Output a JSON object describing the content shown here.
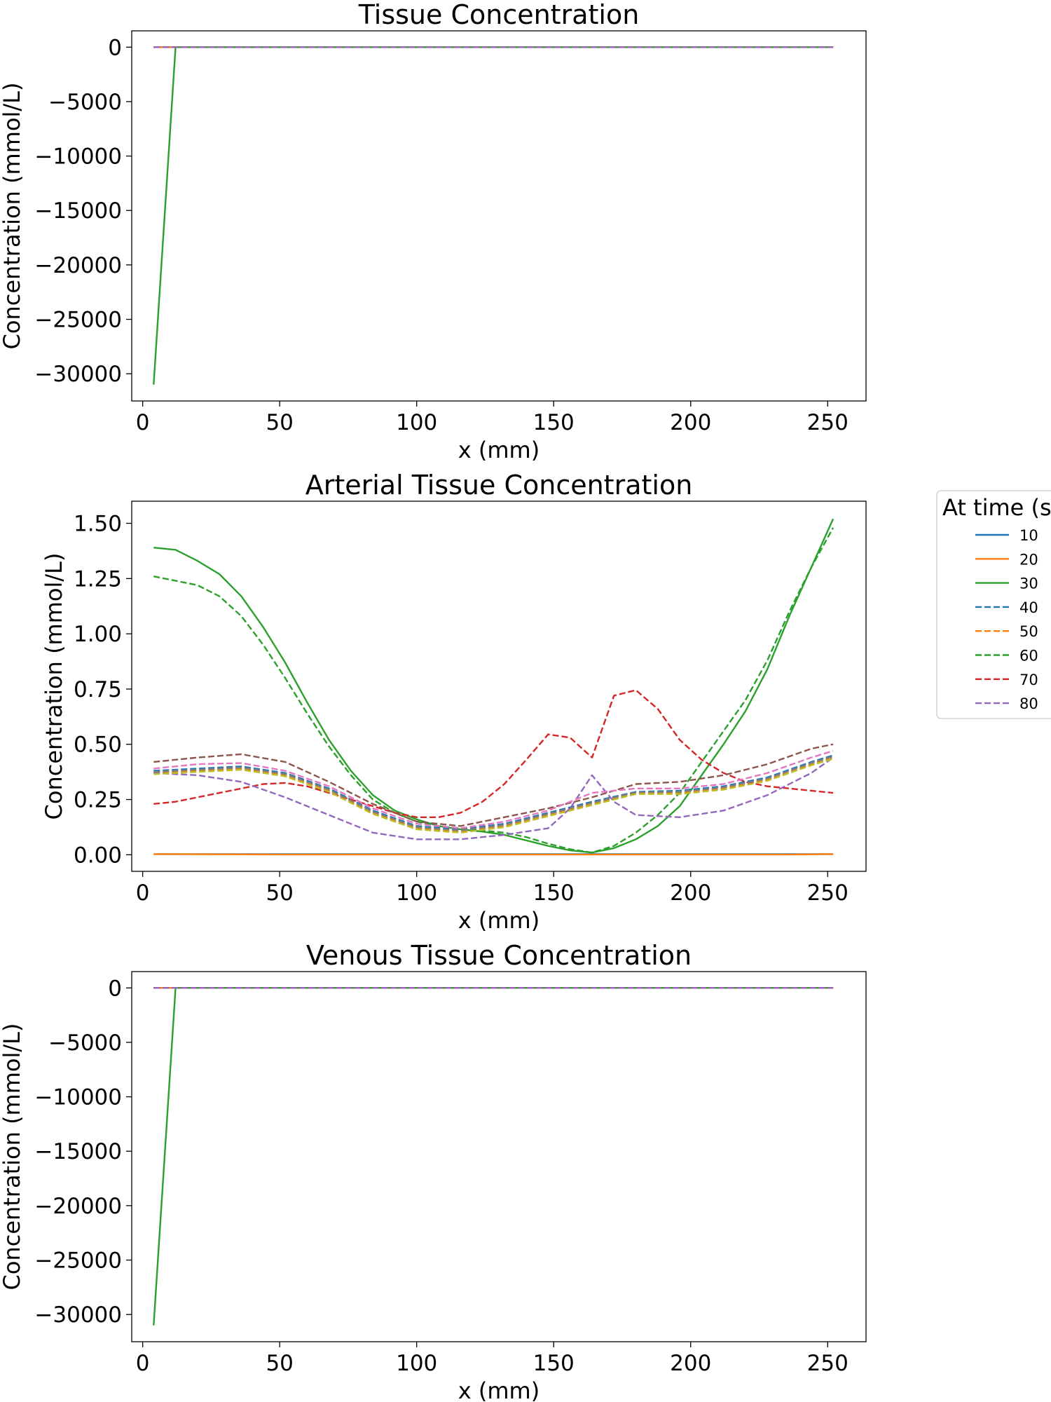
{
  "legend": {
    "title": "At time (s",
    "placement": "outside-right",
    "entries": [
      {
        "label": "10",
        "color": "#1f77b4",
        "style": "solid"
      },
      {
        "label": "20",
        "color": "#ff7f0e",
        "style": "solid"
      },
      {
        "label": "30",
        "color": "#2ca02c",
        "style": "solid"
      },
      {
        "label": "40",
        "color": "#1f77b4",
        "style": "dashed"
      },
      {
        "label": "50",
        "color": "#ff7f0e",
        "style": "dashed"
      },
      {
        "label": "60",
        "color": "#2ca02c",
        "style": "dashed"
      },
      {
        "label": "70",
        "color": "#d62728",
        "style": "dashed"
      },
      {
        "label": "80",
        "color": "#9467bd",
        "style": "dashed"
      }
    ]
  },
  "chart_data": [
    {
      "type": "line",
      "title": "Tissue Concentration",
      "xlabel": "x (mm)",
      "ylabel": "Concentration (mmol/L)",
      "xlim": [
        -4,
        264
      ],
      "ylim": [
        -32500,
        1500
      ],
      "xticks": [
        0,
        50,
        100,
        150,
        200,
        250
      ],
      "xtick_labels": [
        "0",
        "50",
        "100",
        "150",
        "200",
        "250"
      ],
      "yticks": [
        0,
        -5000,
        -10000,
        -15000,
        -20000,
        -25000,
        -30000
      ],
      "ytick_labels": [
        "0",
        "−5000",
        "−10000",
        "−15000",
        "−20000",
        "−25000",
        "−30000"
      ],
      "grid": false,
      "series": [
        {
          "color": "#1f77b4",
          "style": "solid",
          "x": [
            4,
            252
          ],
          "y": [
            0,
            0
          ]
        },
        {
          "color": "#ff7f0e",
          "style": "solid",
          "x": [
            4,
            252
          ],
          "y": [
            0,
            0
          ]
        },
        {
          "color": "#2ca02c",
          "style": "solid",
          "x": [
            4,
            12,
            252
          ],
          "y": [
            -31000,
            0,
            0
          ]
        },
        {
          "color": "#1f77b4",
          "style": "dashed",
          "x": [
            4,
            252
          ],
          "y": [
            0,
            0
          ]
        },
        {
          "color": "#ff7f0e",
          "style": "dashed",
          "x": [
            4,
            252
          ],
          "y": [
            0,
            0
          ]
        },
        {
          "color": "#2ca02c",
          "style": "dashed",
          "x": [
            4,
            252
          ],
          "y": [
            0,
            0
          ]
        },
        {
          "color": "#d62728",
          "style": "dashed",
          "x": [
            4,
            252
          ],
          "y": [
            0,
            0
          ]
        },
        {
          "color": "#9467bd",
          "style": "dashed",
          "x": [
            4,
            252
          ],
          "y": [
            0,
            0
          ]
        }
      ]
    },
    {
      "type": "line",
      "title": "Arterial Tissue Concentration",
      "xlabel": "x (mm)",
      "ylabel": "Concentration (mmol/L)",
      "xlim": [
        -4,
        264
      ],
      "ylim": [
        -0.075,
        1.6
      ],
      "xticks": [
        0,
        50,
        100,
        150,
        200,
        250
      ],
      "xtick_labels": [
        "0",
        "50",
        "100",
        "150",
        "200",
        "250"
      ],
      "yticks": [
        0,
        0.25,
        0.5,
        0.75,
        1.0,
        1.25,
        1.5
      ],
      "ytick_labels": [
        "0.00",
        "0.25",
        "0.50",
        "0.75",
        "1.00",
        "1.25",
        "1.50"
      ],
      "grid": false,
      "series": [
        {
          "color": "#1f77b4",
          "style": "solid",
          "x": [
            4,
            252
          ],
          "y": [
            0.003,
            0.003
          ]
        },
        {
          "color": "#ff7f0e",
          "style": "solid",
          "x": [
            4,
            28,
            52,
            76,
            100,
            124,
            148,
            164,
            188,
            212,
            236,
            252
          ],
          "y": [
            0.003,
            0.002,
            0.001,
            0.001,
            0.001,
            0.001,
            0.001,
            0.001,
            0.001,
            0.001,
            0.001,
            0.003
          ]
        },
        {
          "color": "#2ca02c",
          "style": "solid",
          "x": [
            4,
            12,
            20,
            28,
            36,
            44,
            52,
            60,
            68,
            76,
            84,
            92,
            100,
            108,
            116,
            124,
            132,
            140,
            148,
            156,
            164,
            172,
            180,
            188,
            196,
            204,
            212,
            220,
            228,
            236,
            244,
            252
          ],
          "y": [
            1.39,
            1.38,
            1.33,
            1.27,
            1.17,
            1.03,
            0.87,
            0.69,
            0.52,
            0.38,
            0.27,
            0.2,
            0.16,
            0.13,
            0.115,
            0.105,
            0.09,
            0.065,
            0.04,
            0.02,
            0.01,
            0.03,
            0.07,
            0.13,
            0.22,
            0.36,
            0.5,
            0.65,
            0.84,
            1.08,
            1.3,
            1.52
          ]
        },
        {
          "color": "#1f77b4",
          "style": "dashed",
          "x": [
            4,
            20,
            36,
            52,
            68,
            84,
            100,
            116,
            132,
            148,
            164,
            180,
            196,
            212,
            228,
            244,
            252
          ],
          "y": [
            0.38,
            0.39,
            0.4,
            0.37,
            0.3,
            0.2,
            0.13,
            0.115,
            0.14,
            0.19,
            0.24,
            0.285,
            0.29,
            0.31,
            0.35,
            0.42,
            0.45
          ]
        },
        {
          "color": "#ff7f0e",
          "style": "dashed",
          "x": [
            4,
            20,
            36,
            52,
            68,
            84,
            100,
            116,
            132,
            148,
            164,
            180,
            196,
            212,
            228,
            244,
            252
          ],
          "y": [
            0.37,
            0.38,
            0.39,
            0.36,
            0.29,
            0.19,
            0.12,
            0.105,
            0.13,
            0.18,
            0.23,
            0.28,
            0.28,
            0.3,
            0.34,
            0.41,
            0.44
          ]
        },
        {
          "color": "#2ca02c",
          "style": "dashed",
          "x": [
            4,
            12,
            20,
            28,
            36,
            44,
            52,
            60,
            68,
            76,
            84,
            92,
            100,
            108,
            116,
            124,
            132,
            140,
            148,
            156,
            164,
            172,
            180,
            188,
            196,
            204,
            212,
            220,
            228,
            236,
            244,
            252
          ],
          "y": [
            1.26,
            1.24,
            1.22,
            1.17,
            1.08,
            0.95,
            0.8,
            0.64,
            0.49,
            0.36,
            0.25,
            0.19,
            0.15,
            0.13,
            0.12,
            0.11,
            0.1,
            0.08,
            0.05,
            0.025,
            0.01,
            0.04,
            0.1,
            0.18,
            0.28,
            0.42,
            0.56,
            0.7,
            0.88,
            1.1,
            1.3,
            1.48
          ]
        },
        {
          "color": "#d62728",
          "style": "dashed",
          "x": [
            4,
            12,
            20,
            28,
            36,
            44,
            52,
            60,
            68,
            76,
            84,
            92,
            100,
            108,
            116,
            124,
            132,
            140,
            148,
            156,
            164,
            172,
            180,
            188,
            196,
            204,
            212,
            220,
            228,
            236,
            244,
            252
          ],
          "y": [
            0.23,
            0.24,
            0.26,
            0.28,
            0.3,
            0.32,
            0.325,
            0.31,
            0.28,
            0.25,
            0.22,
            0.19,
            0.17,
            0.17,
            0.19,
            0.24,
            0.32,
            0.43,
            0.545,
            0.53,
            0.44,
            0.72,
            0.745,
            0.66,
            0.52,
            0.43,
            0.37,
            0.33,
            0.31,
            0.3,
            0.29,
            0.28
          ]
        },
        {
          "color": "#9467bd",
          "style": "dashed",
          "x": [
            4,
            20,
            36,
            52,
            68,
            84,
            100,
            116,
            132,
            148,
            156,
            164,
            172,
            180,
            196,
            212,
            228,
            244,
            252
          ],
          "y": [
            0.37,
            0.36,
            0.33,
            0.26,
            0.18,
            0.1,
            0.07,
            0.07,
            0.09,
            0.12,
            0.21,
            0.36,
            0.24,
            0.18,
            0.17,
            0.2,
            0.27,
            0.37,
            0.44
          ]
        },
        {
          "color": "#8c564b",
          "style": "dashed",
          "x": [
            4,
            20,
            36,
            52,
            68,
            84,
            100,
            116,
            132,
            148,
            164,
            180,
            196,
            212,
            228,
            244,
            252
          ],
          "y": [
            0.42,
            0.44,
            0.455,
            0.42,
            0.33,
            0.23,
            0.15,
            0.13,
            0.17,
            0.21,
            0.26,
            0.32,
            0.33,
            0.36,
            0.41,
            0.48,
            0.5
          ]
        },
        {
          "color": "#e377c2",
          "style": "dashed",
          "x": [
            4,
            20,
            36,
            52,
            68,
            84,
            100,
            116,
            132,
            148,
            164,
            180,
            196,
            212,
            228,
            244,
            252
          ],
          "y": [
            0.39,
            0.41,
            0.415,
            0.38,
            0.31,
            0.21,
            0.14,
            0.12,
            0.15,
            0.2,
            0.28,
            0.3,
            0.3,
            0.32,
            0.37,
            0.44,
            0.47
          ]
        },
        {
          "color": "#7f7f7f",
          "style": "dashed",
          "x": [
            4,
            20,
            36,
            52,
            68,
            84,
            100,
            116,
            132,
            148,
            164,
            180,
            196,
            212,
            228,
            244,
            252
          ],
          "y": [
            0.375,
            0.385,
            0.395,
            0.365,
            0.295,
            0.195,
            0.125,
            0.11,
            0.135,
            0.185,
            0.235,
            0.283,
            0.285,
            0.305,
            0.345,
            0.415,
            0.445
          ]
        },
        {
          "color": "#bcbd22",
          "style": "dashed",
          "x": [
            4,
            20,
            36,
            52,
            68,
            84,
            100,
            116,
            132,
            148,
            164,
            180,
            196,
            212,
            228,
            244,
            252
          ],
          "y": [
            0.365,
            0.375,
            0.385,
            0.355,
            0.285,
            0.185,
            0.115,
            0.1,
            0.125,
            0.175,
            0.225,
            0.275,
            0.275,
            0.295,
            0.335,
            0.405,
            0.435
          ]
        }
      ]
    },
    {
      "type": "line",
      "title": "Venous Tissue Concentration",
      "xlabel": "x (mm)",
      "ylabel": "Concentration (mmol/L)",
      "xlim": [
        -4,
        264
      ],
      "ylim": [
        -32500,
        1500
      ],
      "xticks": [
        0,
        50,
        100,
        150,
        200,
        250
      ],
      "xtick_labels": [
        "0",
        "50",
        "100",
        "150",
        "200",
        "250"
      ],
      "yticks": [
        0,
        -5000,
        -10000,
        -15000,
        -20000,
        -25000,
        -30000
      ],
      "ytick_labels": [
        "0",
        "−5000",
        "−10000",
        "−15000",
        "−20000",
        "−25000",
        "−30000"
      ],
      "grid": false,
      "series": [
        {
          "color": "#1f77b4",
          "style": "solid",
          "x": [
            4,
            252
          ],
          "y": [
            0,
            0
          ]
        },
        {
          "color": "#ff7f0e",
          "style": "solid",
          "x": [
            4,
            252
          ],
          "y": [
            0,
            0
          ]
        },
        {
          "color": "#2ca02c",
          "style": "solid",
          "x": [
            4,
            12,
            252
          ],
          "y": [
            -31000,
            0,
            0
          ]
        },
        {
          "color": "#1f77b4",
          "style": "dashed",
          "x": [
            4,
            252
          ],
          "y": [
            0,
            0
          ]
        },
        {
          "color": "#ff7f0e",
          "style": "dashed",
          "x": [
            4,
            252
          ],
          "y": [
            0,
            0
          ]
        },
        {
          "color": "#2ca02c",
          "style": "dashed",
          "x": [
            4,
            252
          ],
          "y": [
            0,
            0
          ]
        },
        {
          "color": "#d62728",
          "style": "dashed",
          "x": [
            4,
            252
          ],
          "y": [
            0,
            0
          ]
        },
        {
          "color": "#9467bd",
          "style": "dashed",
          "x": [
            4,
            252
          ],
          "y": [
            0,
            0
          ]
        }
      ]
    }
  ]
}
